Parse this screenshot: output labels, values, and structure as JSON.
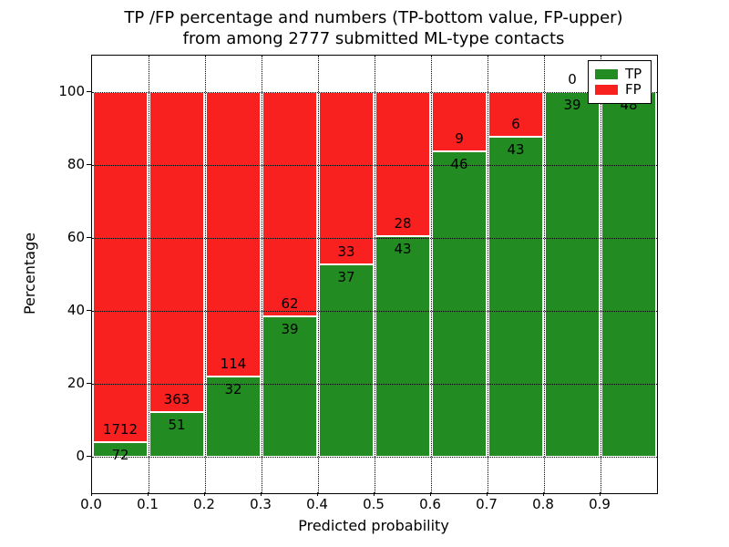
{
  "title": {
    "line1": "TP /FP percentage and numbers (TP-bottom value, FP-upper)",
    "line2": "from among 2777 submitted ML-type contacts"
  },
  "axes": {
    "xlabel": "Predicted probability",
    "ylabel": "Percentage",
    "xtick_labels": [
      "0.0",
      "0.1",
      "0.2",
      "0.3",
      "0.4",
      "0.5",
      "0.6",
      "0.7",
      "0.8",
      "0.9"
    ],
    "ytick_values": [
      0,
      20,
      40,
      60,
      80,
      100
    ]
  },
  "legend": {
    "items": [
      {
        "label": "TP",
        "color": "#228b22"
      },
      {
        "label": "FP",
        "color": "#f92020"
      }
    ],
    "position": "upper right"
  },
  "colors": {
    "tp_green": "#228b22",
    "fp_red": "#f92020",
    "grid": "#000000",
    "background": "#ffffff"
  },
  "chart_data": {
    "type": "bar",
    "stacked": true,
    "normalized": "each bin scaled to 100%",
    "title": "TP /FP percentage and numbers (TP-bottom value, FP-upper) from among 2777 submitted ML-type contacts",
    "xlabel": "Predicted probability",
    "ylabel": "Percentage",
    "total_contacts": 2777,
    "bins": [
      "0.0-0.1",
      "0.1-0.2",
      "0.2-0.3",
      "0.3-0.4",
      "0.4-0.5",
      "0.5-0.6",
      "0.6-0.7",
      "0.7-0.8",
      "0.8-0.9",
      "0.9-1.0"
    ],
    "bin_starts": [
      0.0,
      0.1,
      0.2,
      0.3,
      0.4,
      0.5,
      0.6,
      0.7,
      0.8,
      0.9
    ],
    "series": [
      {
        "name": "TP",
        "color": "#228b22",
        "counts": [
          72,
          51,
          32,
          39,
          37,
          43,
          46,
          43,
          39,
          48
        ]
      },
      {
        "name": "FP",
        "color": "#f92020",
        "counts": [
          1712,
          363,
          114,
          62,
          33,
          28,
          9,
          6,
          0,
          0
        ]
      }
    ],
    "tp_percent_of_bin": [
      4.0,
      12.3,
      21.9,
      38.6,
      52.9,
      60.6,
      83.6,
      87.8,
      100.0,
      100.0
    ],
    "xlim": [
      0.0,
      1.0
    ],
    "ylim": [
      -10,
      110
    ],
    "yticks": [
      0,
      20,
      40,
      60,
      80,
      100
    ],
    "xticks": [
      0.0,
      0.1,
      0.2,
      0.3,
      0.4,
      0.5,
      0.6,
      0.7,
      0.8,
      0.9
    ],
    "grid": "dotted",
    "legend_position": "upper right"
  }
}
